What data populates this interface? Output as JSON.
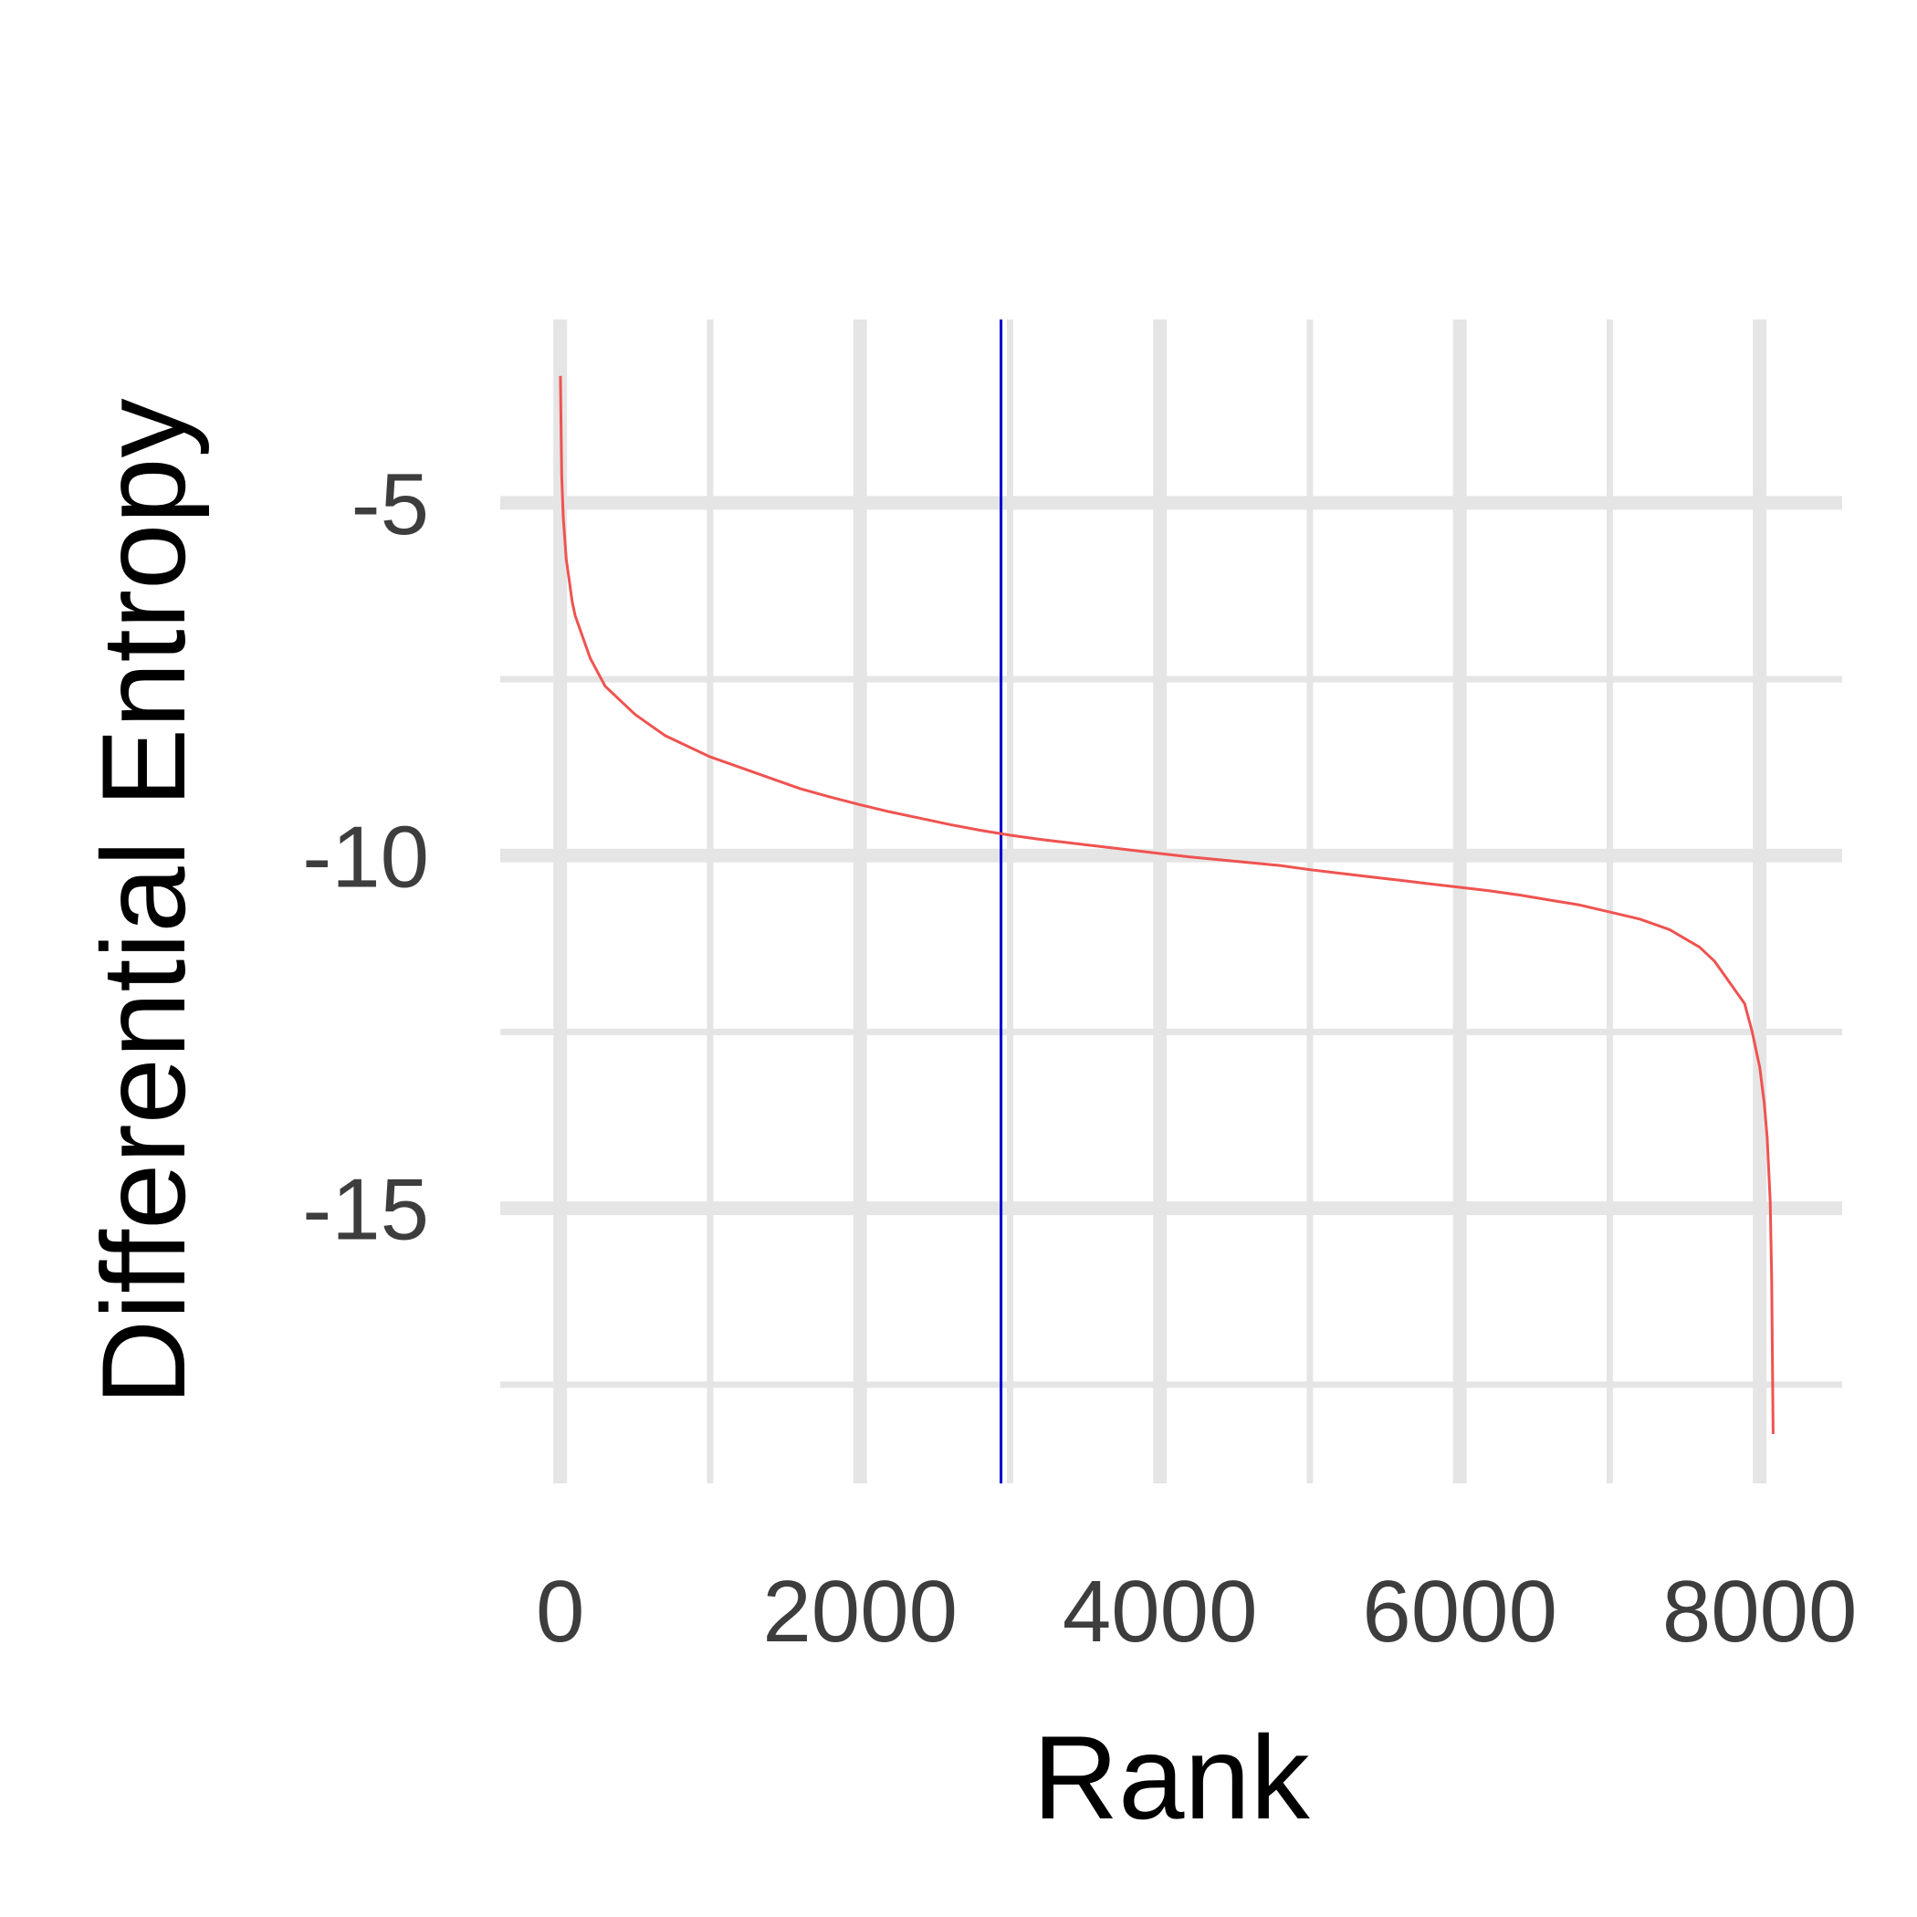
{
  "chart_data": {
    "type": "line",
    "title": "",
    "xlabel": "Rank",
    "ylabel": "Differential Entropy",
    "xlim": [
      -400,
      8550
    ],
    "ylim": [
      -18.9,
      -2.4
    ],
    "x_major_ticks": [
      0,
      2000,
      4000,
      6000,
      8000
    ],
    "x_minor_ticks": [
      1000,
      3000,
      5000,
      7000
    ],
    "x_tick_labels": [
      "0",
      "2000",
      "4000",
      "6000",
      "8000"
    ],
    "y_major_ticks": [
      -5,
      -10,
      -15
    ],
    "y_minor_ticks": [
      -7.5,
      -12.5,
      -17.5
    ],
    "y_tick_labels": [
      "-5",
      "-10",
      "-15"
    ],
    "grid": true,
    "vline": {
      "x": 2940,
      "color": "#0000cc"
    },
    "series": [
      {
        "color": "#ef5350",
        "points": [
          [
            1,
            -3.2
          ],
          [
            10,
            -4.6
          ],
          [
            20,
            -5.2
          ],
          [
            40,
            -5.8
          ],
          [
            60,
            -6.1
          ],
          [
            80,
            -6.4
          ],
          [
            100,
            -6.6
          ],
          [
            150,
            -6.9
          ],
          [
            200,
            -7.2
          ],
          [
            250,
            -7.4
          ],
          [
            300,
            -7.6
          ],
          [
            350,
            -7.7
          ],
          [
            400,
            -7.8
          ],
          [
            500,
            -8.0
          ],
          [
            600,
            -8.15
          ],
          [
            700,
            -8.3
          ],
          [
            800,
            -8.4
          ],
          [
            900,
            -8.5
          ],
          [
            1000,
            -8.6
          ],
          [
            1200,
            -8.75
          ],
          [
            1400,
            -8.9
          ],
          [
            1600,
            -9.05
          ],
          [
            1800,
            -9.17
          ],
          [
            2000,
            -9.28
          ],
          [
            2200,
            -9.38
          ],
          [
            2400,
            -9.47
          ],
          [
            2600,
            -9.56
          ],
          [
            2800,
            -9.64
          ],
          [
            3000,
            -9.71
          ],
          [
            3200,
            -9.77
          ],
          [
            3400,
            -9.82
          ],
          [
            3600,
            -9.87
          ],
          [
            3800,
            -9.92
          ],
          [
            4000,
            -9.97
          ],
          [
            4200,
            -10.02
          ],
          [
            4400,
            -10.06
          ],
          [
            4600,
            -10.1
          ],
          [
            4800,
            -10.14
          ],
          [
            5000,
            -10.2
          ],
          [
            5200,
            -10.25
          ],
          [
            5400,
            -10.3
          ],
          [
            5600,
            -10.35
          ],
          [
            5800,
            -10.4
          ],
          [
            6000,
            -10.45
          ],
          [
            6200,
            -10.5
          ],
          [
            6400,
            -10.56
          ],
          [
            6600,
            -10.63
          ],
          [
            6800,
            -10.7
          ],
          [
            7000,
            -10.8
          ],
          [
            7200,
            -10.9
          ],
          [
            7400,
            -11.05
          ],
          [
            7600,
            -11.3
          ],
          [
            7700,
            -11.5
          ],
          [
            7800,
            -11.8
          ],
          [
            7900,
            -12.1
          ],
          [
            7950,
            -12.5
          ],
          [
            8000,
            -13.0
          ],
          [
            8030,
            -13.5
          ],
          [
            8050,
            -14.0
          ],
          [
            8070,
            -14.9
          ],
          [
            8080,
            -16.0
          ],
          [
            8090,
            -18.2
          ]
        ]
      }
    ]
  }
}
